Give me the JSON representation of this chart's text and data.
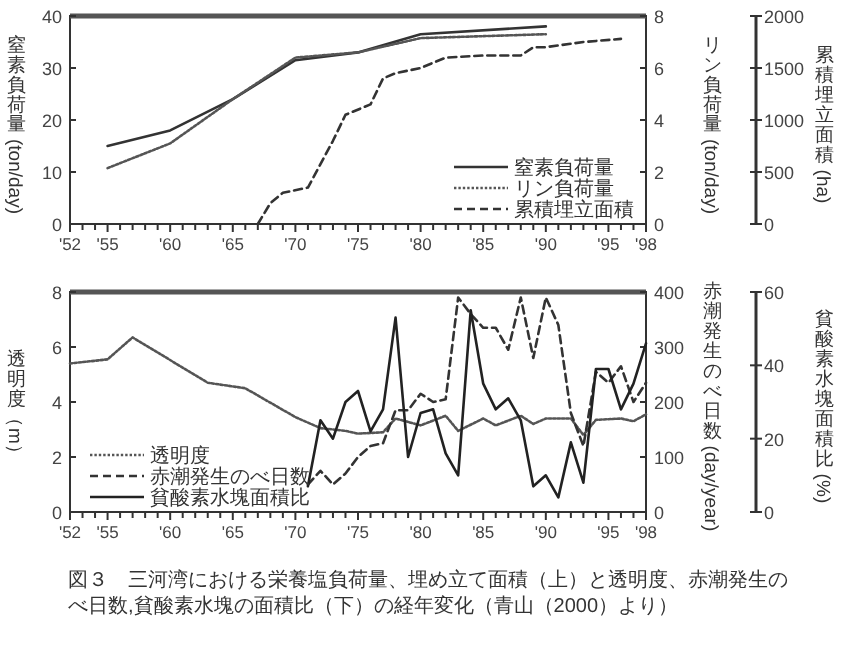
{
  "chart_data": [
    {
      "type": "line",
      "ylabel": "窒素負荷量 (ton/day)",
      "y2label": "リン負荷量 (ton/day)",
      "y3label": "累積埋立面積 (ha)",
      "xlim": [
        1952,
        1998
      ],
      "xticks": [
        {
          "value": 1952,
          "label": "'52"
        },
        {
          "value": 1953,
          "label": null
        },
        {
          "value": 1954,
          "label": null
        },
        {
          "value": 1955,
          "label": "'55"
        },
        {
          "value": 1956,
          "label": null
        },
        {
          "value": 1957,
          "label": null
        },
        {
          "value": 1958,
          "label": null
        },
        {
          "value": 1959,
          "label": null
        },
        {
          "value": 1960,
          "label": "'60"
        },
        {
          "value": 1961,
          "label": null
        },
        {
          "value": 1962,
          "label": null
        },
        {
          "value": 1963,
          "label": null
        },
        {
          "value": 1964,
          "label": null
        },
        {
          "value": 1965,
          "label": "'65"
        },
        {
          "value": 1966,
          "label": null
        },
        {
          "value": 1967,
          "label": null
        },
        {
          "value": 1968,
          "label": null
        },
        {
          "value": 1969,
          "label": null
        },
        {
          "value": 1970,
          "label": "'70"
        },
        {
          "value": 1971,
          "label": null
        },
        {
          "value": 1972,
          "label": null
        },
        {
          "value": 1973,
          "label": null
        },
        {
          "value": 1974,
          "label": null
        },
        {
          "value": 1975,
          "label": "'75"
        },
        {
          "value": 1976,
          "label": null
        },
        {
          "value": 1977,
          "label": null
        },
        {
          "value": 1978,
          "label": null
        },
        {
          "value": 1979,
          "label": null
        },
        {
          "value": 1980,
          "label": "'80"
        },
        {
          "value": 1981,
          "label": null
        },
        {
          "value": 1982,
          "label": null
        },
        {
          "value": 1983,
          "label": null
        },
        {
          "value": 1984,
          "label": null
        },
        {
          "value": 1985,
          "label": "'85"
        },
        {
          "value": 1986,
          "label": null
        },
        {
          "value": 1987,
          "label": null
        },
        {
          "value": 1988,
          "label": null
        },
        {
          "value": 1989,
          "label": null
        },
        {
          "value": 1990,
          "label": "'90"
        },
        {
          "value": 1991,
          "label": null
        },
        {
          "value": 1992,
          "label": null
        },
        {
          "value": 1993,
          "label": null
        },
        {
          "value": 1994,
          "label": null
        },
        {
          "value": 1995,
          "label": "'95"
        },
        {
          "value": 1996,
          "label": null
        },
        {
          "value": 1997,
          "label": null
        },
        {
          "value": 1998,
          "label": "'98"
        }
      ],
      "ylim": [
        0,
        40
      ],
      "yticks": [
        0,
        10,
        20,
        30,
        40
      ],
      "y2lim": [
        0,
        8
      ],
      "y2ticks": [
        0,
        2,
        4,
        6,
        8
      ],
      "y3lim": [
        0,
        2000
      ],
      "y3ticks": [
        0,
        500,
        1000,
        1500,
        2000
      ],
      "legend": "bottom right",
      "grid": false,
      "series": [
        {
          "name": "窒素負荷量",
          "color": "#333333",
          "line_style": "solid",
          "x": [
            1955,
            1960,
            1965,
            1970,
            1975,
            1980,
            1990
          ],
          "values": [
            15,
            18,
            24,
            31.5,
            33,
            36.5,
            38
          ]
        },
        {
          "name": "リン負荷量",
          "color": "#555555",
          "line_style": "dotted",
          "axis": "y2",
          "x": [
            1955,
            1960,
            1965,
            1970,
            1975,
            1980,
            1990
          ],
          "values": [
            2.15,
            3.1,
            4.8,
            6.4,
            6.6,
            7.15,
            7.3
          ]
        },
        {
          "name": "累積埋立面積",
          "color": "#333333",
          "line_style": "dashed",
          "axis": "y3",
          "x": [
            1967,
            1968,
            1969,
            1971,
            1973,
            1974,
            1976,
            1977,
            1978,
            1980,
            1982,
            1985,
            1988,
            1989,
            1990,
            1993,
            1996
          ],
          "values": [
            0,
            200,
            300,
            350,
            800,
            1050,
            1150,
            1400,
            1450,
            1500,
            1600,
            1620,
            1620,
            1700,
            1700,
            1750,
            1780
          ]
        }
      ]
    },
    {
      "type": "line",
      "ylabel": "透明度（m）",
      "y2label": "赤潮発生のべ日数 (day/year)",
      "y3label": "貧酸素水塊面積比 (%)",
      "xlim": [
        1952,
        1998
      ],
      "xticks": [
        {
          "value": 1952,
          "label": "'52"
        },
        {
          "value": 1953,
          "label": null
        },
        {
          "value": 1954,
          "label": null
        },
        {
          "value": 1955,
          "label": "'55"
        },
        {
          "value": 1956,
          "label": null
        },
        {
          "value": 1957,
          "label": null
        },
        {
          "value": 1958,
          "label": null
        },
        {
          "value": 1959,
          "label": null
        },
        {
          "value": 1960,
          "label": "'60"
        },
        {
          "value": 1961,
          "label": null
        },
        {
          "value": 1962,
          "label": null
        },
        {
          "value": 1963,
          "label": null
        },
        {
          "value": 1964,
          "label": null
        },
        {
          "value": 1965,
          "label": "'65"
        },
        {
          "value": 1966,
          "label": null
        },
        {
          "value": 1967,
          "label": null
        },
        {
          "value": 1968,
          "label": null
        },
        {
          "value": 1969,
          "label": null
        },
        {
          "value": 1970,
          "label": "'70"
        },
        {
          "value": 1971,
          "label": null
        },
        {
          "value": 1972,
          "label": null
        },
        {
          "value": 1973,
          "label": null
        },
        {
          "value": 1974,
          "label": null
        },
        {
          "value": 1975,
          "label": "'75"
        },
        {
          "value": 1976,
          "label": null
        },
        {
          "value": 1977,
          "label": null
        },
        {
          "value": 1978,
          "label": null
        },
        {
          "value": 1979,
          "label": null
        },
        {
          "value": 1980,
          "label": "'80"
        },
        {
          "value": 1981,
          "label": null
        },
        {
          "value": 1982,
          "label": null
        },
        {
          "value": 1983,
          "label": null
        },
        {
          "value": 1984,
          "label": null
        },
        {
          "value": 1985,
          "label": "'85"
        },
        {
          "value": 1986,
          "label": null
        },
        {
          "value": 1987,
          "label": null
        },
        {
          "value": 1988,
          "label": null
        },
        {
          "value": 1989,
          "label": null
        },
        {
          "value": 1990,
          "label": "'90"
        },
        {
          "value": 1991,
          "label": null
        },
        {
          "value": 1992,
          "label": null
        },
        {
          "value": 1993,
          "label": null
        },
        {
          "value": 1994,
          "label": null
        },
        {
          "value": 1995,
          "label": "'95"
        },
        {
          "value": 1996,
          "label": null
        },
        {
          "value": 1997,
          "label": null
        },
        {
          "value": 1998,
          "label": "'98"
        }
      ],
      "ylim": [
        0,
        8
      ],
      "yticks": [
        0,
        2,
        4,
        6,
        8
      ],
      "y2lim": [
        0,
        400
      ],
      "y2ticks": [
        0,
        100,
        200,
        300,
        400
      ],
      "y3lim": [
        0,
        60
      ],
      "y3ticks": [
        0,
        20,
        40,
        60
      ],
      "legend": "bottom left",
      "grid": false,
      "series": [
        {
          "name": "透明度",
          "color": "#555555",
          "line_style": "dotted",
          "x": [
            1952,
            1955,
            1957,
            1963,
            1966,
            1970,
            1972,
            1974,
            1975,
            1977,
            1978,
            1980,
            1982,
            1983,
            1985,
            1986,
            1988,
            1989,
            1990,
            1992,
            1993,
            1994,
            1996,
            1997,
            1998
          ],
          "values": [
            5.4,
            5.55,
            6.35,
            4.7,
            4.5,
            3.45,
            3.05,
            2.95,
            2.85,
            2.9,
            3.4,
            3.15,
            3.5,
            2.95,
            3.4,
            3.15,
            3.5,
            3.2,
            3.4,
            3.4,
            2.8,
            3.35,
            3.4,
            3.3,
            3.55
          ]
        },
        {
          "name": "赤潮発生のべ日数",
          "color": "#333333",
          "line_style": "dashed",
          "axis": "y2",
          "x": [
            1971,
            1972,
            1973,
            1974,
            1975,
            1976,
            1977,
            1978,
            1979,
            1980,
            1981,
            1982,
            1983,
            1984,
            1985,
            1986,
            1987,
            1988,
            1989,
            1990,
            1991,
            1992,
            1993,
            1994,
            1995,
            1996,
            1997,
            1998
          ],
          "values": [
            50,
            75,
            50,
            70,
            100,
            120,
            125,
            185,
            185,
            215,
            200,
            205,
            390,
            360,
            335,
            335,
            295,
            390,
            280,
            390,
            340,
            180,
            120,
            255,
            235,
            265,
            200,
            235
          ]
        },
        {
          "name": "貧酸素水塊面積比",
          "color": "#222222",
          "line_style": "solid",
          "axis": "y3",
          "x": [
            1971,
            1972,
            1973,
            1974,
            1975,
            1976,
            1977,
            1978,
            1979,
            1980,
            1981,
            1982,
            1983,
            1984,
            1985,
            1986,
            1987,
            1988,
            1989,
            1990,
            1991,
            1992,
            1993,
            1994,
            1995,
            1996,
            1997,
            1998
          ],
          "values": [
            7,
            25,
            20,
            30,
            33,
            22,
            28,
            53,
            15,
            27,
            28,
            16,
            10,
            55,
            35,
            28,
            31,
            25,
            7,
            10,
            4,
            19,
            8,
            39,
            39,
            28,
            35,
            46
          ]
        }
      ],
      "annotations": [
        "図３　三河湾における栄養塩負荷量、埋め立て面積（上）と透明度、赤潮発生のべ日数,貧酸素水塊の面積比（下）の経年変化（青山（2000）より）"
      ]
    }
  ]
}
